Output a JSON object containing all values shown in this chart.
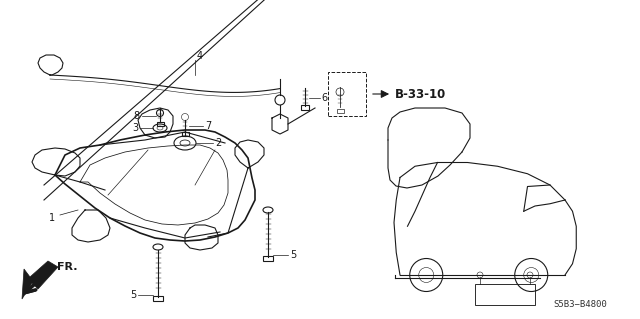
{
  "bg_color": "#ffffff",
  "fig_width": 6.4,
  "fig_height": 3.19,
  "dpi": 100,
  "col": "#1a1a1a",
  "ref_label": "B-33-10",
  "part_code": "S5B3−B4800",
  "fr_text": "FR."
}
